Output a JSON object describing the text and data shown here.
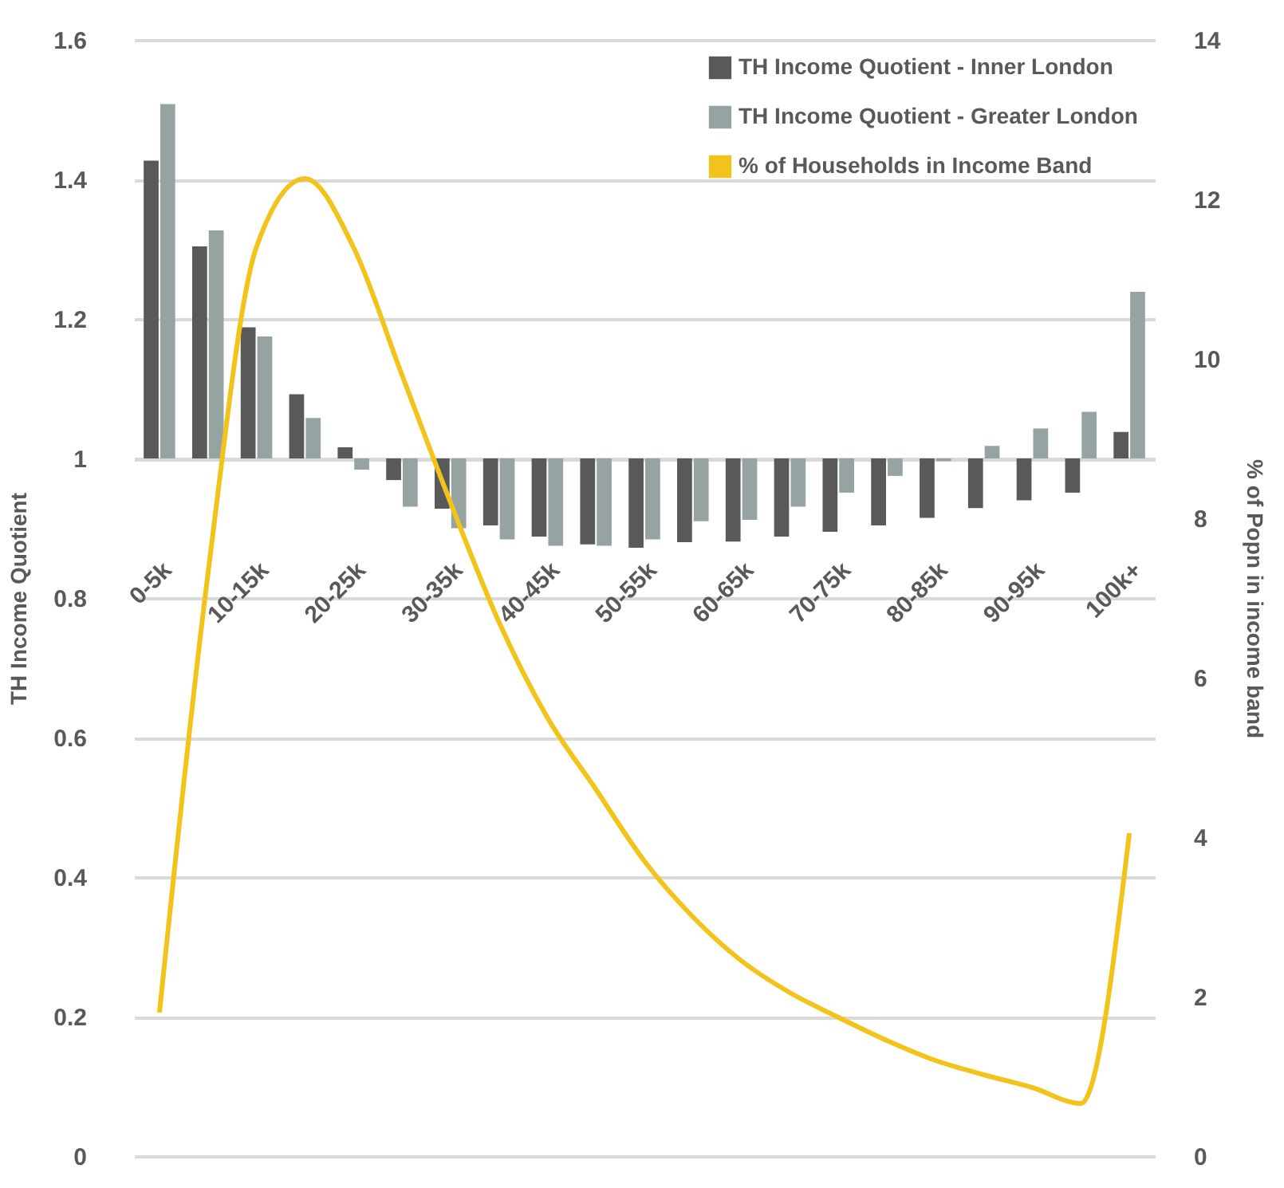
{
  "chart_data": {
    "type": "bar",
    "categories": [
      "0-5k",
      null,
      "10-15k",
      null,
      "20-25k",
      null,
      "30-35k",
      null,
      "40-45k",
      null,
      "50-55k",
      null,
      "60-65k",
      null,
      "70-75k",
      null,
      "80-85k",
      null,
      "90-95k",
      null,
      "100k+"
    ],
    "ylabel": "TH Income Quotient",
    "y2label": "% of Popn in income band",
    "ylim": [
      0,
      1.6
    ],
    "yticks": [
      0,
      0.2,
      0.4,
      0.6,
      0.8,
      1,
      1.2,
      1.4,
      1.6
    ],
    "y2lim": [
      0,
      14
    ],
    "y2ticks": [
      0,
      2,
      4,
      6,
      8,
      10,
      12,
      14
    ],
    "grid": "y",
    "legend": "top right",
    "series": [
      {
        "name": "TH Income Quotient - Inner London",
        "color": "#595959",
        "base": [
          1,
          1,
          1,
          1,
          1,
          1,
          1,
          1,
          1,
          1,
          1,
          1,
          1,
          1,
          1,
          1,
          1,
          1,
          1,
          1,
          1
        ],
        "values": [
          0.427,
          0.304,
          0.188,
          0.092,
          0.016,
          -0.031,
          -0.072,
          -0.096,
          -0.112,
          -0.123,
          -0.128,
          -0.12,
          -0.119,
          -0.112,
          -0.105,
          -0.096,
          -0.085,
          -0.071,
          -0.06,
          -0.049,
          0.038
        ]
      },
      {
        "name": "TH Income Quotient - Greater London",
        "color": "#95a3a3",
        "base": [
          1,
          1,
          1,
          1,
          1,
          1,
          1,
          1,
          1,
          1,
          1,
          1,
          1,
          1,
          1,
          1,
          1,
          1,
          1,
          1,
          1
        ],
        "values": [
          0.508,
          0.327,
          0.175,
          0.058,
          -0.016,
          -0.069,
          -0.1,
          -0.116,
          -0.125,
          -0.125,
          -0.116,
          -0.09,
          -0.088,
          -0.069,
          -0.049,
          -0.025,
          -0.004,
          0.018,
          0.043,
          0.067,
          0.239
        ]
      },
      {
        "name": "% of Households in Income Band",
        "type": "line",
        "axis": "y2",
        "color": "#f2c31a",
        "values": [
          1.8,
          7.3,
          11.4,
          12.26,
          11.4,
          9.8,
          8.2,
          6.7,
          5.5,
          4.6,
          3.7,
          3.0,
          2.45,
          2.05,
          1.74,
          1.45,
          1.2,
          1.02,
          0.86,
          0.66,
          4.05
        ]
      }
    ]
  }
}
